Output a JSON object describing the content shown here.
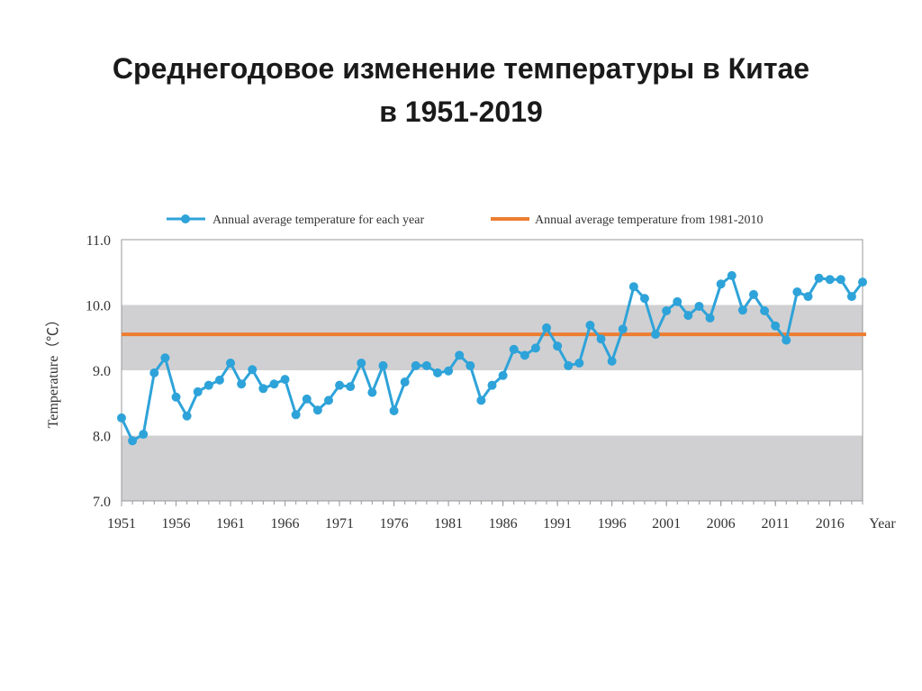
{
  "title_line1": "Среднегодовое изменение температуры в Китае",
  "title_line2": "в 1951-2019",
  "chart_data": {
    "type": "line",
    "title": "Среднегодовое изменение температуры в Китае в 1951-2019",
    "xlabel": "Year",
    "ylabel": "Temperature（℃）",
    "xlim": [
      1951,
      2019
    ],
    "ylim": [
      7.0,
      11.0
    ],
    "yticks": [
      "7.0",
      "8.0",
      "9.0",
      "10.0",
      "11.0"
    ],
    "xticks": [
      "1951",
      "1956",
      "1961",
      "1966",
      "1971",
      "1976",
      "1981",
      "1986",
      "1991",
      "1996",
      "2001",
      "2006",
      "2011",
      "2016"
    ],
    "shaded_bands": [
      [
        7,
        8
      ],
      [
        9,
        10
      ]
    ],
    "legend_position": "top",
    "series": [
      {
        "name": "Annual average temperature for each year",
        "color": "#2ea3d9",
        "x": [
          1951,
          1952,
          1953,
          1954,
          1955,
          1956,
          1957,
          1958,
          1959,
          1960,
          1961,
          1962,
          1963,
          1964,
          1965,
          1966,
          1967,
          1968,
          1969,
          1970,
          1971,
          1972,
          1973,
          1974,
          1975,
          1976,
          1977,
          1978,
          1979,
          1980,
          1981,
          1982,
          1983,
          1984,
          1985,
          1986,
          1987,
          1988,
          1989,
          1990,
          1991,
          1992,
          1993,
          1994,
          1995,
          1996,
          1997,
          1998,
          1999,
          2000,
          2001,
          2002,
          2003,
          2004,
          2005,
          2006,
          2007,
          2008,
          2009,
          2010,
          2011,
          2012,
          2013,
          2014,
          2015,
          2016,
          2017,
          2018,
          2019
        ],
        "values": [
          8.27,
          7.92,
          8.02,
          8.96,
          9.19,
          8.59,
          8.3,
          8.67,
          8.77,
          8.85,
          9.11,
          8.79,
          9.01,
          8.72,
          8.79,
          8.86,
          8.32,
          8.56,
          8.39,
          8.54,
          8.77,
          8.75,
          9.11,
          8.66,
          9.07,
          8.38,
          8.82,
          9.07,
          9.07,
          8.96,
          8.99,
          9.23,
          9.07,
          8.54,
          8.77,
          8.92,
          9.32,
          9.23,
          9.34,
          9.65,
          9.37,
          9.07,
          9.11,
          9.69,
          9.48,
          9.14,
          9.63,
          10.28,
          10.1,
          9.55,
          9.91,
          10.05,
          9.84,
          9.98,
          9.8,
          10.32,
          10.45,
          9.92,
          10.16,
          9.91,
          9.68,
          9.46,
          10.2,
          10.13,
          10.41,
          10.39,
          10.39,
          10.13,
          10.35
        ]
      },
      {
        "name": "Annual average temperature from 1981-2010",
        "color": "#ed7d31",
        "values": [
          9.55
        ]
      }
    ]
  }
}
